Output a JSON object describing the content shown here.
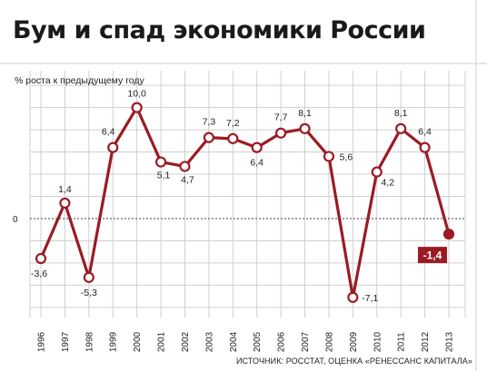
{
  "chart_data": {
    "type": "line",
    "title": "Бум и спад экономики России",
    "ylabel": "% роста к предыдущему году",
    "source": "ИСТОЧНИК: РОССТАТ, ОЦЕНКА «РЕНЕССАНС КАПИТАЛА»",
    "x": [
      "1996",
      "1997",
      "1998",
      "1999",
      "2000",
      "2001",
      "2002",
      "2003",
      "2004",
      "2005",
      "2006",
      "2007",
      "2008",
      "2009",
      "2010",
      "2011",
      "2012",
      "2013"
    ],
    "values": [
      -3.6,
      1.4,
      -5.3,
      6.4,
      10.0,
      5.1,
      4.7,
      7.3,
      7.2,
      6.4,
      7.7,
      8.1,
      5.6,
      -7.1,
      4.2,
      8.1,
      6.4,
      -1.4
    ],
    "value_labels": [
      "-3,6",
      "1,4",
      "-5,3",
      "6,4",
      "10,0",
      "5,1",
      "4,7",
      "7,3",
      "7,2",
      "6,4",
      "7,7",
      "8,1",
      "5,6",
      "-7,1",
      "4,2",
      "8,1",
      "6,4",
      "-1,4"
    ],
    "y_tick_labels": [
      {
        "value": 0,
        "label": "0"
      }
    ],
    "ylim": [
      -8.5,
      12.5
    ],
    "highlight_last": true,
    "colors": {
      "line": "#9b1b24",
      "highlight_box": "#9b1b24",
      "grid": "#cfcfcf",
      "zero_line": "#444444"
    }
  }
}
